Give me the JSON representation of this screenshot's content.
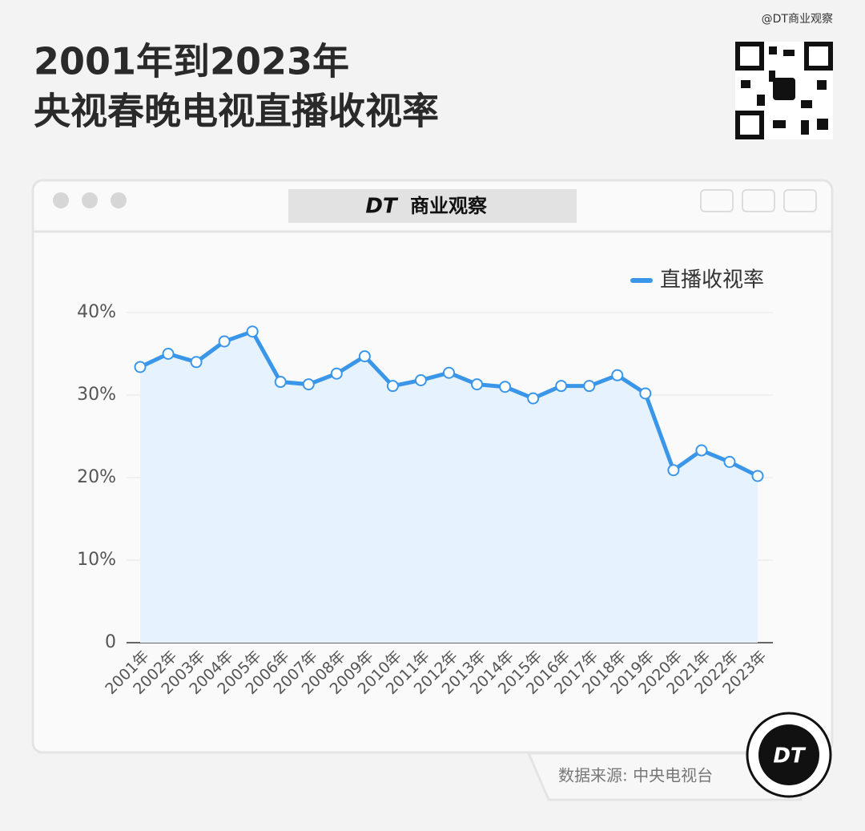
{
  "watermark": "@DT商业观察",
  "brand_logo": "DT",
  "brand_name": "商业观察",
  "source": "数据来源: 中央电视台",
  "badge": "DT",
  "chart_data": {
    "type": "line",
    "title": [
      "2001年到2023年",
      "央视春晚电视直播收视率"
    ],
    "categories": [
      "2001年",
      "2002年",
      "2003年",
      "2004年",
      "2005年",
      "2006年",
      "2007年",
      "2008年",
      "2009年",
      "2010年",
      "2011年",
      "2012年",
      "2013年",
      "2014年",
      "2015年",
      "2016年",
      "2017年",
      "2018年",
      "2019年",
      "2020年",
      "2021年",
      "2022年",
      "2023年"
    ],
    "series": [
      {
        "name": "直播收视率",
        "color": "#3a96e8",
        "values": [
          33.4,
          35.0,
          34.0,
          36.5,
          37.7,
          31.6,
          31.3,
          32.6,
          34.7,
          31.1,
          31.8,
          32.7,
          31.3,
          31.0,
          29.6,
          31.1,
          31.1,
          32.4,
          30.2,
          20.9,
          23.3,
          21.9,
          20.2
        ]
      }
    ],
    "ylim": [
      0,
      40
    ],
    "yticks": [
      0,
      {
        "value": 10,
        "label": "10%"
      },
      {
        "value": 20,
        "label": "20%"
      },
      {
        "value": 30,
        "label": "30%"
      },
      {
        "value": 40,
        "label": "40%"
      }
    ],
    "grid": true,
    "area_fill": "#e6f2fd",
    "legend": "top-right"
  }
}
